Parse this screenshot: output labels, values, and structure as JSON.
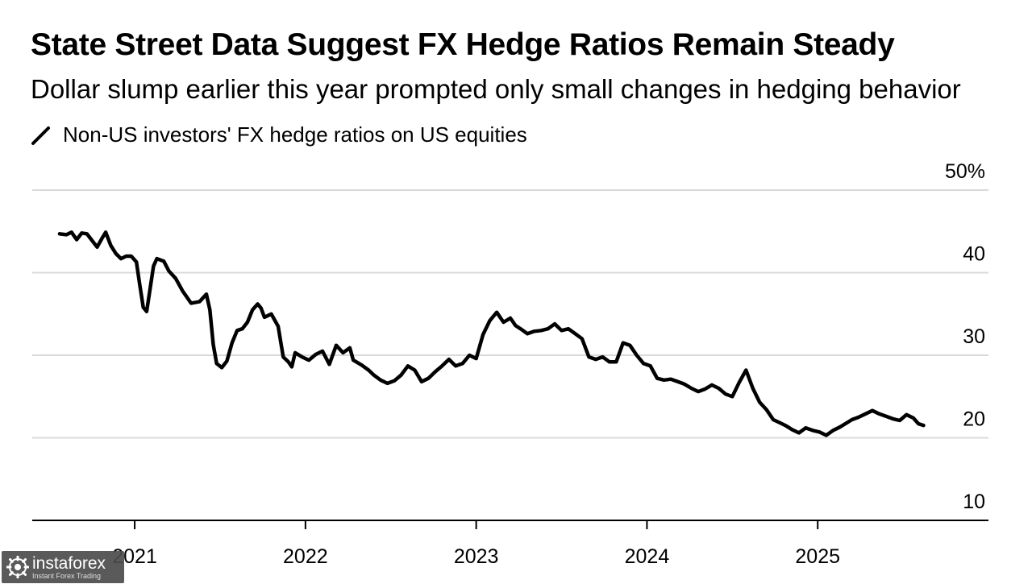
{
  "header": {
    "title": "State Street Data Suggest FX Hedge Ratios Remain Steady",
    "subtitle": "Dollar slump earlier this year prompted only small changes in hedging behavior"
  },
  "legend": {
    "label": "Non-US investors' FX hedge ratios on US equities"
  },
  "watermark": {
    "brand": "instaforex",
    "tagline": "Instant Forex Trading"
  },
  "colors": {
    "line": "#000000",
    "grid": "#d9d9d9",
    "axis": "#000000",
    "background": "#ffffff"
  },
  "chart_data": {
    "type": "line",
    "title": "State Street Data Suggest FX Hedge Ratios Remain Steady",
    "subtitle": "Dollar slump earlier this year prompted only small changes in hedging behavior",
    "xlabel": "",
    "ylabel": "",
    "xlim": [
      2020.4,
      2026.0
    ],
    "ylim": [
      10,
      50
    ],
    "yticks": [
      10,
      20,
      30,
      40,
      50
    ],
    "ytick_labels": [
      "10",
      "20",
      "30",
      "40",
      "50%"
    ],
    "xticks": [
      2021,
      2022,
      2023,
      2024,
      2025
    ],
    "xtick_labels": [
      "2021",
      "2022",
      "2023",
      "2024",
      "2025"
    ],
    "grid": true,
    "legend_position": "top-left",
    "series": [
      {
        "name": "Non-US investors' FX hedge ratios on US equities",
        "x": [
          2020.56,
          2020.6,
          2020.63,
          2020.66,
          2020.69,
          2020.72,
          2020.75,
          2020.78,
          2020.81,
          2020.83,
          2020.86,
          2020.89,
          2020.92,
          2020.95,
          2020.98,
          2021.01,
          2021.03,
          2021.05,
          2021.07,
          2021.09,
          2021.11,
          2021.13,
          2021.17,
          2021.2,
          2021.24,
          2021.28,
          2021.33,
          2021.38,
          2021.42,
          2021.44,
          2021.46,
          2021.48,
          2021.51,
          2021.54,
          2021.57,
          2021.6,
          2021.63,
          2021.66,
          2021.69,
          2021.72,
          2021.74,
          2021.76,
          2021.8,
          2021.84,
          2021.87,
          2021.9,
          2021.92,
          2021.94,
          2021.98,
          2022.02,
          2022.06,
          2022.1,
          2022.14,
          2022.18,
          2022.22,
          2022.26,
          2022.28,
          2022.33,
          2022.37,
          2022.4,
          2022.44,
          2022.48,
          2022.52,
          2022.56,
          2022.6,
          2022.64,
          2022.68,
          2022.72,
          2022.76,
          2022.8,
          2022.84,
          2022.88,
          2022.92,
          2022.96,
          2023.0,
          2023.04,
          2023.08,
          2023.12,
          2023.16,
          2023.2,
          2023.23,
          2023.26,
          2023.3,
          2023.34,
          2023.38,
          2023.42,
          2023.46,
          2023.5,
          2023.54,
          2023.58,
          2023.62,
          2023.66,
          2023.7,
          2023.74,
          2023.78,
          2023.82,
          2023.86,
          2023.9,
          2023.94,
          2023.98,
          2024.02,
          2024.06,
          2024.1,
          2024.14,
          2024.18,
          2024.22,
          2024.26,
          2024.3,
          2024.34,
          2024.38,
          2024.42,
          2024.46,
          2024.5,
          2024.54,
          2024.58,
          2024.62,
          2024.66,
          2024.7,
          2024.74,
          2024.78,
          2024.81,
          2024.85,
          2024.89,
          2024.93,
          2024.97,
          2025.01,
          2025.05,
          2025.09,
          2025.13,
          2025.17,
          2025.2,
          2025.24,
          2025.28,
          2025.32,
          2025.36,
          2025.4,
          2025.44,
          2025.48,
          2025.52,
          2025.56,
          2025.59,
          2025.62
        ],
        "values": [
          44.7,
          44.6,
          44.9,
          44.0,
          44.8,
          44.7,
          43.9,
          43.1,
          44.2,
          44.9,
          43.3,
          42.3,
          41.7,
          42.0,
          42.0,
          41.3,
          38.5,
          35.8,
          35.3,
          38.0,
          40.8,
          41.7,
          41.4,
          40.2,
          39.3,
          37.8,
          36.3,
          36.5,
          37.4,
          35.5,
          31.3,
          29.0,
          28.5,
          29.3,
          31.5,
          33.0,
          33.2,
          34.0,
          35.5,
          36.2,
          35.7,
          34.6,
          35.0,
          33.5,
          29.8,
          29.2,
          28.6,
          30.3,
          29.8,
          29.4,
          30.1,
          30.5,
          28.9,
          31.2,
          30.3,
          30.9,
          29.4,
          28.8,
          28.2,
          27.6,
          27.0,
          26.6,
          26.9,
          27.6,
          28.7,
          28.2,
          26.8,
          27.2,
          28.0,
          28.7,
          29.5,
          28.7,
          29.0,
          30.0,
          29.6,
          32.5,
          34.2,
          35.2,
          34.0,
          34.5,
          33.6,
          33.2,
          32.6,
          32.9,
          33.0,
          33.2,
          33.8,
          33.0,
          33.2,
          32.6,
          32.0,
          29.8,
          29.5,
          29.8,
          29.2,
          29.2,
          31.5,
          31.2,
          30.0,
          29.0,
          28.7,
          27.2,
          27.0,
          27.1,
          26.8,
          26.5,
          26.0,
          25.6,
          25.9,
          26.4,
          26.0,
          25.3,
          25.0,
          26.7,
          28.2,
          26.0,
          24.3,
          23.4,
          22.2,
          21.8,
          21.5,
          21.0,
          20.6,
          21.2,
          20.9,
          20.7,
          20.3,
          20.9,
          21.3,
          21.8,
          22.2,
          22.5,
          22.9,
          23.3,
          22.9,
          22.6,
          22.3,
          22.1,
          22.8,
          22.4,
          21.7,
          21.5
        ]
      }
    ]
  }
}
